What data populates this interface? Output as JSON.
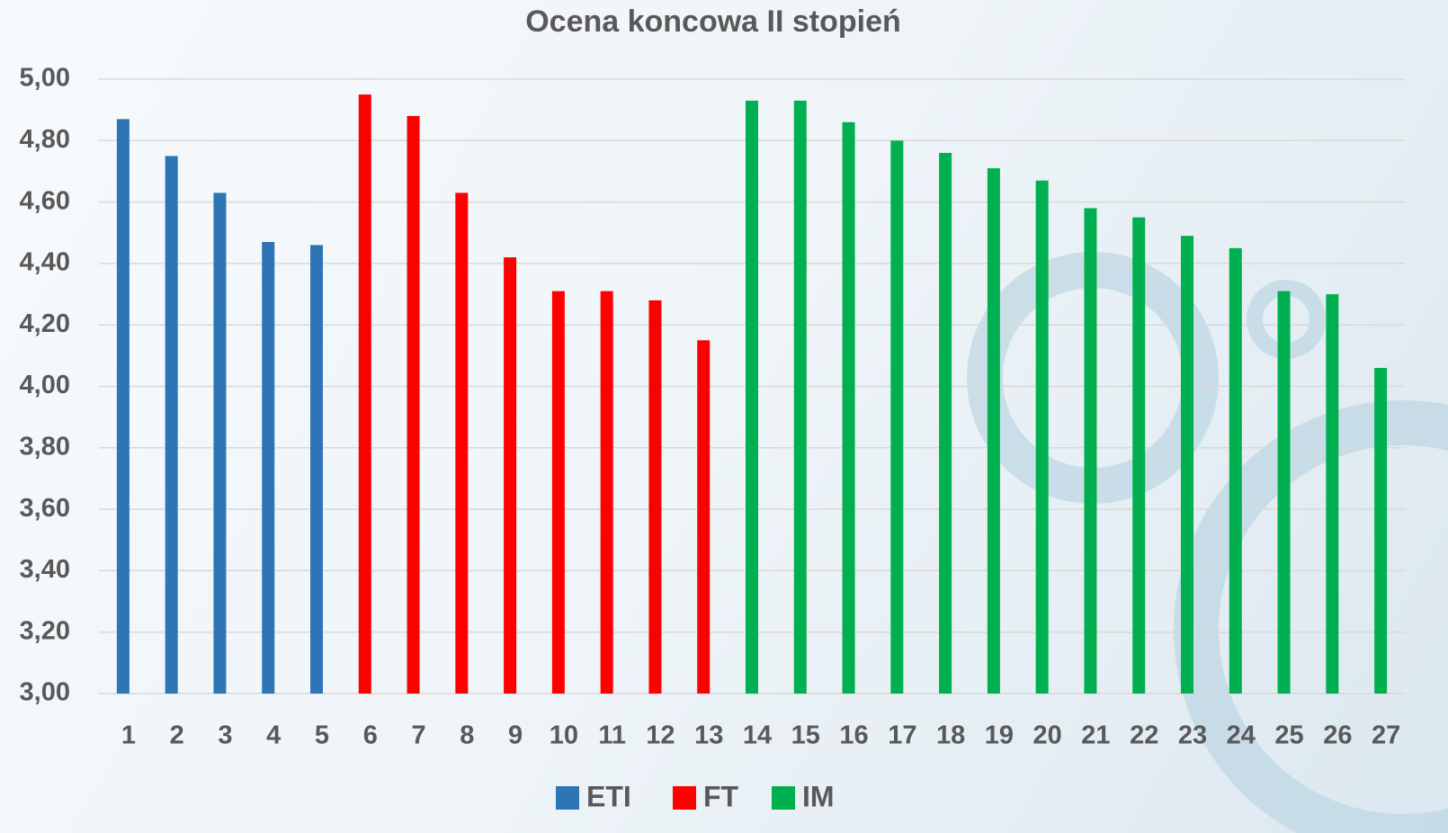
{
  "chart_data": {
    "type": "bar",
    "title": "Ocena koncowa II stopień",
    "categories": [
      "1",
      "2",
      "3",
      "4",
      "5",
      "6",
      "7",
      "8",
      "9",
      "10",
      "11",
      "12",
      "13",
      "14",
      "15",
      "16",
      "17",
      "18",
      "19",
      "20",
      "21",
      "22",
      "23",
      "24",
      "25",
      "26",
      "27"
    ],
    "series": [
      {
        "name": "ETI",
        "color": "#2e75b6",
        "values": [
          4.87,
          4.75,
          4.63,
          4.47,
          4.46,
          null,
          null,
          null,
          null,
          null,
          null,
          null,
          null,
          null,
          null,
          null,
          null,
          null,
          null,
          null,
          null,
          null,
          null,
          null,
          null,
          null,
          null
        ]
      },
      {
        "name": "FT",
        "color": "#ff0000",
        "values": [
          null,
          null,
          null,
          null,
          null,
          4.95,
          4.88,
          4.63,
          4.42,
          4.31,
          4.31,
          4.28,
          4.15,
          null,
          null,
          null,
          null,
          null,
          null,
          null,
          null,
          null,
          null,
          null,
          null,
          null,
          null
        ]
      },
      {
        "name": "IM",
        "color": "#00b050",
        "values": [
          null,
          null,
          null,
          null,
          null,
          null,
          null,
          null,
          null,
          null,
          null,
          null,
          null,
          4.93,
          4.93,
          4.86,
          4.8,
          4.76,
          4.71,
          4.67,
          4.58,
          4.55,
          4.49,
          4.45,
          4.31,
          4.3,
          4.06
        ]
      }
    ],
    "ylim": [
      3,
      5
    ],
    "yticks": [
      {
        "value": 3,
        "label": "3,00"
      },
      {
        "value": 3.2,
        "label": "3,20"
      },
      {
        "value": 3.4,
        "label": "3,40"
      },
      {
        "value": 3.6,
        "label": "3,60"
      },
      {
        "value": 3.8,
        "label": "3,80"
      },
      {
        "value": 4,
        "label": "4,00"
      },
      {
        "value": 4.2,
        "label": "4,20"
      },
      {
        "value": 4.4,
        "label": "4,40"
      },
      {
        "value": 4.6,
        "label": "4,60"
      },
      {
        "value": 4.8,
        "label": "4,80"
      },
      {
        "value": 5,
        "label": "5,00"
      }
    ],
    "grid": true,
    "legend": "bottom"
  }
}
